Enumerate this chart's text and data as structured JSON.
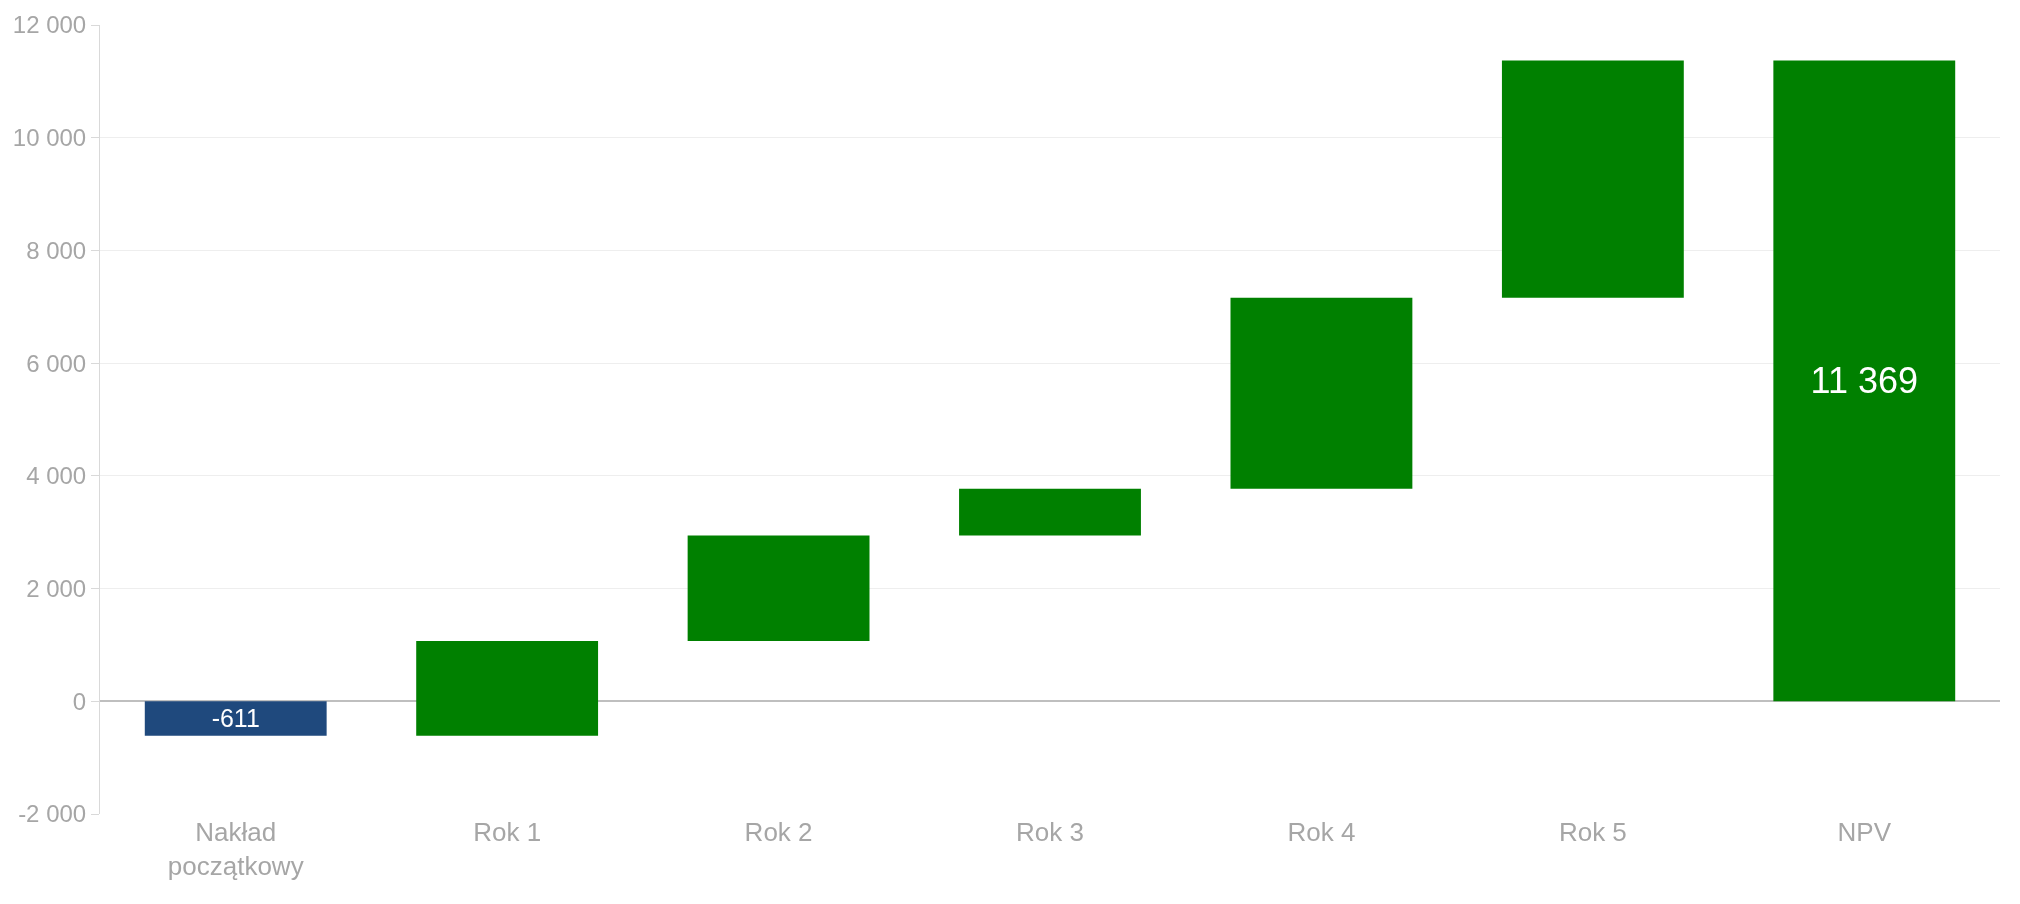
{
  "chart_data": {
    "type": "bar",
    "categories": [
      "Nakład początkowy",
      "Rok 1",
      "Rok 2",
      "Rok 3",
      "Rok 4",
      "Rok 5",
      "NPV"
    ],
    "values": [
      -611,
      1681,
      1870,
      830,
      3390,
      4209,
      11369
    ],
    "base": [
      0,
      -611,
      1070,
      2940,
      3770,
      7160,
      0
    ],
    "colors": [
      "#1f497d",
      "#008000",
      "#008000",
      "#008000",
      "#008000",
      "#008000",
      "#008000"
    ],
    "value_labels": [
      "-611",
      null,
      null,
      null,
      null,
      null,
      "11 369"
    ],
    "ylim": [
      -2000,
      12000
    ],
    "yticks": [
      {
        "value": -2000,
        "label": "-2 000"
      },
      0,
      {
        "value": 2000,
        "label": "2 000"
      },
      {
        "value": 4000,
        "label": "4 000"
      },
      {
        "value": 6000,
        "label": "6 000"
      },
      {
        "value": 8000,
        "label": "8 000"
      },
      {
        "value": 10000,
        "label": "10 000"
      },
      {
        "value": 12000,
        "label": "12 000"
      }
    ],
    "grid": "y",
    "legend": false
  }
}
